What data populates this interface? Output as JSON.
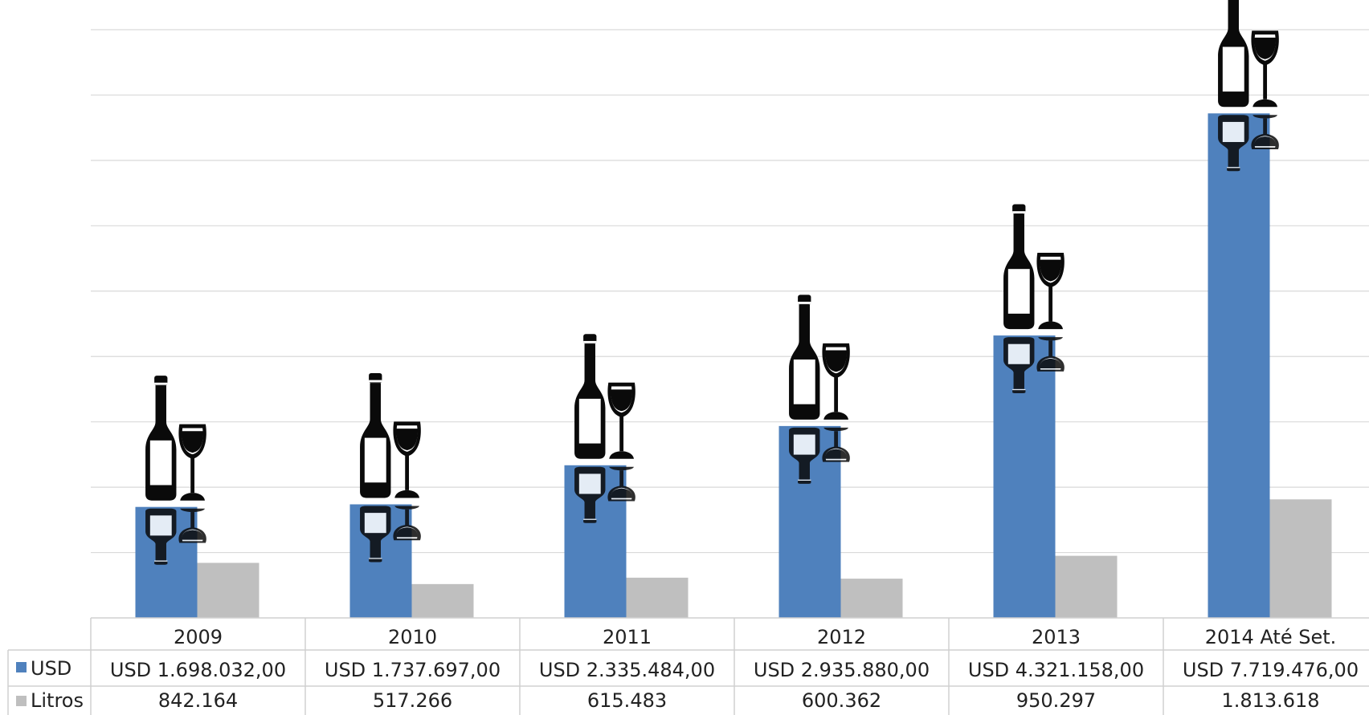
{
  "chart_data": {
    "type": "bar",
    "categories": [
      "2009",
      "2010",
      "2011",
      "2012",
      "2013",
      "2014 Até Set."
    ],
    "series": [
      {
        "name": "USD",
        "values": [
          1698032.0,
          1737697.0,
          2335484.0,
          2935880.0,
          4321158.0,
          7719476.0
        ],
        "labels": [
          "USD 1.698.032,00",
          "USD 1.737.697,00",
          "USD 2.335.484,00",
          "USD 2.935.880,00",
          "USD 4.321.158,00",
          "USD 7.719.476,00"
        ],
        "color": "#4f81bd"
      },
      {
        "name": "Litros",
        "values": [
          842164,
          517266,
          615483,
          600362,
          950297,
          1813618
        ],
        "labels": [
          "842.164",
          "517.266",
          "615.483",
          "600.362",
          "950.297",
          "1.813.618"
        ],
        "color": "#bfbfbf"
      }
    ],
    "ylim": [
      0,
      9000000
    ],
    "grid": true,
    "legend": "data-table-left",
    "marker_icon": "wine-bottle-and-glass-icon",
    "gridline_color": "#d9d9d9",
    "table_border_color": "#d0d0d0"
  }
}
